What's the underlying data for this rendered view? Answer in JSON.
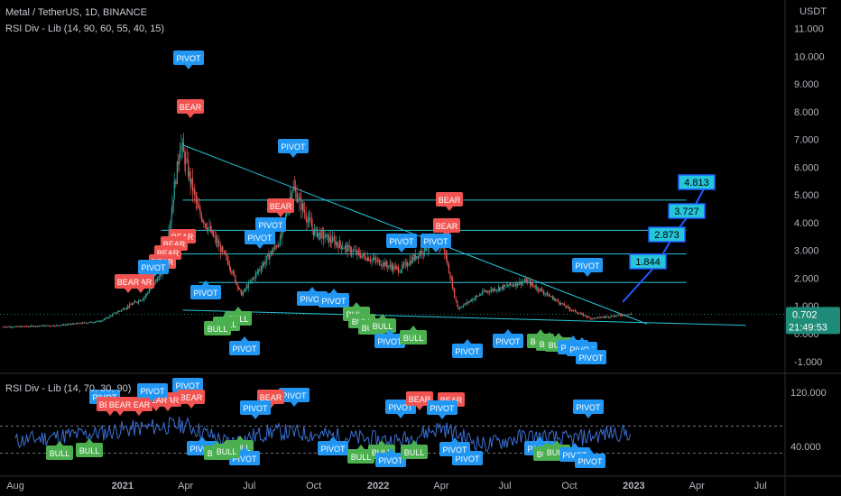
{
  "header": {
    "symbol_line": "Metal / TetherUS, 1D, BINANCE",
    "indicator_line": "RSI Div - Lib (14, 90, 60, 55, 40, 15)",
    "rsi_line": "RSI Div - Lib (14, 70, 30, 90)"
  },
  "price_axis": {
    "unit": "USDT",
    "ticks": [
      "11.000",
      "10.000",
      "9.000",
      "8.000",
      "7.000",
      "6.000",
      "5.000",
      "4.000",
      "3.000",
      "2.000",
      "1.000",
      "0.000",
      "-1.000"
    ],
    "last_price": "0.702",
    "countdown": "21:49:53"
  },
  "rsi_axis": {
    "ticks": [
      "120.000",
      "40.000"
    ]
  },
  "time_axis": {
    "labels": [
      "Aug",
      "2021",
      "Apr",
      "Jul",
      "Oct",
      "2022",
      "Apr",
      "Jul",
      "Oct",
      "2023",
      "Apr",
      "Jul"
    ]
  },
  "colors": {
    "background": "#000000",
    "candle_up": "#26a69a",
    "candle_down": "#ef5350",
    "trendline": "#26c6da",
    "bear_label": "#f05350",
    "bull_label": "#4caf50",
    "pivot_label": "#2196f3",
    "rsi_line": "#3b6fd4",
    "projection": "#1e5cff"
  },
  "labels": {
    "pivot": "PIVOT",
    "bear": "BEAR",
    "bull": "BULL"
  },
  "chart_data": [
    {
      "type": "line",
      "title": "Metal / TetherUS, 1D, BINANCE",
      "ylabel": "USDT",
      "ylim": [
        -1.3,
        11.7
      ],
      "x": [
        "2020-08",
        "2020-10",
        "2020-12",
        "2021-02",
        "2021-03",
        "2021-03-25",
        "2021-04-20",
        "2021-06",
        "2021-06-20",
        "2021-08-15",
        "2021-09",
        "2021-10",
        "2021-12",
        "2022-02",
        "2022-03-20",
        "2022-04-05",
        "2022-04-25",
        "2022-06",
        "2022-08",
        "2022-10",
        "2022-11",
        "2022-12-25"
      ],
      "series": [
        {
          "values": [
            0.25,
            0.3,
            0.45,
            1.3,
            2.3,
            6.9,
            4.4,
            2.6,
            1.4,
            3.4,
            5.3,
            3.7,
            2.9,
            2.3,
            3.3,
            3.1,
            0.9,
            1.5,
            1.9,
            0.9,
            0.55,
            0.7
          ]
        }
      ],
      "levels": [
        4.813,
        3.727,
        2.873,
        1.844
      ],
      "annotations": [
        {
          "text": "PIVOT",
          "date": "2021-03-25",
          "price": 9.95
        },
        {
          "text": "BEAR",
          "date": "2021-03-25",
          "price": 8.1
        },
        {
          "text": "PIVOT",
          "date": "2021-08-25",
          "price": 6.9
        },
        {
          "text": "BEAR",
          "date": "2021-08-25",
          "price": 4.9
        },
        {
          "text": "PIVOT",
          "date": "2022-03-20",
          "price": 3.95
        },
        {
          "text": "BEAR",
          "date": "2022-04-01",
          "price": 4.95
        },
        {
          "text": "BEAR",
          "date": "2022-04-01",
          "price": 4.0
        },
        {
          "text": "PIVOT",
          "date": "2022-12-01",
          "price": 2.8
        },
        {
          "text": "BULL",
          "date": "2021-06-20",
          "price": 0.55
        },
        {
          "text": "PIVOT",
          "date": "2021-06-20",
          "price": -0.5
        }
      ]
    },
    {
      "type": "line",
      "title": "RSI Div - Lib (14, 70, 30, 90)",
      "ylim": [
        0,
        140
      ],
      "x": [
        "2020-08",
        "2020-10",
        "2020-12",
        "2021-01",
        "2021-03",
        "2021-04",
        "2021-06",
        "2021-08",
        "2021-10",
        "2021-12",
        "2022-02",
        "2022-04",
        "2022-06",
        "2022-08",
        "2022-10",
        "2022-12"
      ],
      "series": [
        {
          "values": [
            48,
            55,
            60,
            65,
            70,
            72,
            45,
            62,
            58,
            52,
            48,
            68,
            42,
            55,
            50,
            60
          ]
        }
      ]
    }
  ]
}
